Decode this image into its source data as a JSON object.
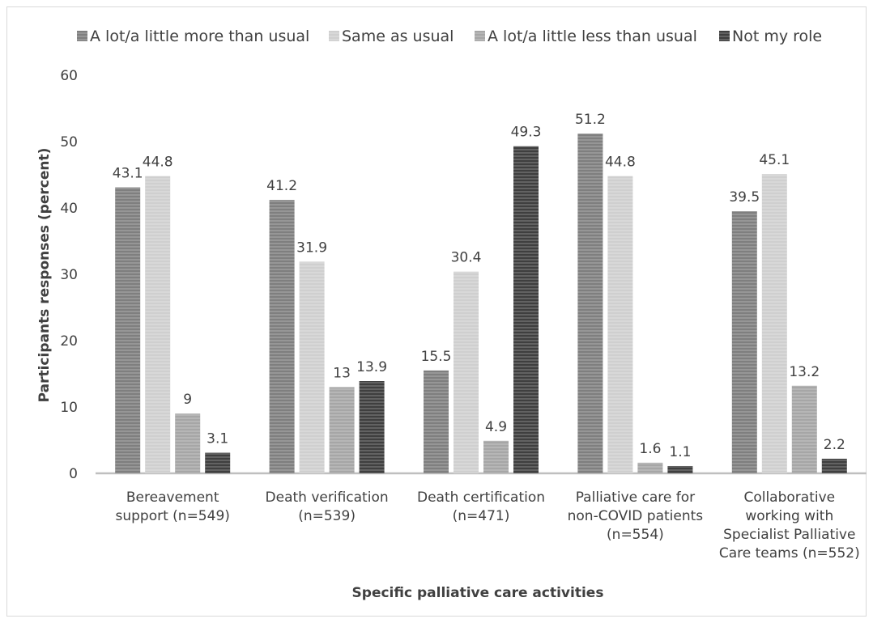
{
  "chart_data": {
    "type": "bar",
    "title": "",
    "xlabel": "Specific palliative care activities",
    "ylabel": "Participants responses (percent)",
    "ylim": [
      0,
      60
    ],
    "yticks": [
      0,
      10,
      20,
      30,
      40,
      50,
      60
    ],
    "grid": false,
    "legend_position": "top",
    "categories": [
      [
        "Bereavement",
        "support (n=549)"
      ],
      [
        "Death verification",
        "(n=539)"
      ],
      [
        "Death certification",
        "(n=471)"
      ],
      [
        "Palliative care for",
        "non-COVID patients",
        "(n=554)"
      ],
      [
        "Collaborative",
        "working with",
        "Specialist Palliative",
        "Care teams (n=552)"
      ]
    ],
    "series": [
      {
        "name": "A lot/a little more than usual",
        "color": "#7f7f7f",
        "values": [
          43.1,
          41.2,
          15.5,
          51.2,
          39.5
        ],
        "labels": [
          "43.1",
          "41.2",
          "15.5",
          "51.2",
          "39.5"
        ]
      },
      {
        "name": "Same as usual",
        "color": "#cfcfcf",
        "values": [
          44.8,
          31.9,
          30.4,
          44.8,
          45.1
        ],
        "labels": [
          "44.8",
          "31.9",
          "30.4",
          "44.8",
          "45.1"
        ]
      },
      {
        "name": "A lot/a little less than usual",
        "color": "#a6a6a6",
        "values": [
          9,
          13,
          4.9,
          1.6,
          13.2
        ],
        "labels": [
          "9",
          "13",
          "4.9",
          "1.6",
          "13.2"
        ]
      },
      {
        "name": "Not my role",
        "color": "#3f3f3f",
        "values": [
          3.1,
          13.9,
          49.3,
          1.1,
          2.2
        ],
        "labels": [
          "3.1",
          "13.9",
          "49.3",
          "1.1",
          "2.2"
        ]
      }
    ]
  }
}
